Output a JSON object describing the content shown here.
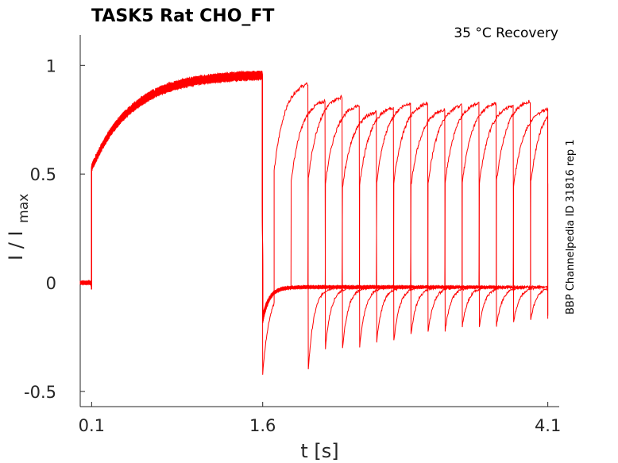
{
  "chart_data": {
    "type": "line",
    "title": "TASK5  Rat  CHO_FT",
    "annotation": "35 °C  Recovery",
    "side_label": "BBP Channelpedia ID 31816 rep 1",
    "xlabel": "t [s]",
    "ylabel": "I / I",
    "ylabel_sub": "max",
    "xlim": [
      0.0,
      4.2
    ],
    "ylim": [
      -0.57,
      1.14
    ],
    "x_ticks": [
      0.1,
      1.6,
      4.1
    ],
    "x_tick_labels": [
      "0.1",
      "1.6",
      "4.1"
    ],
    "y_ticks": [
      -0.5,
      0,
      0.5,
      1
    ],
    "y_tick_labels": [
      "-0.5",
      "0",
      "0.5",
      "1"
    ],
    "grid": false,
    "line_color": "#ff0000",
    "protocol": {
      "prepulse_start": 0.1,
      "prepulse_end": 1.6,
      "prepulse_peak": 0.98,
      "rise_tau": 0.35,
      "instant_fraction": 0.55,
      "initial_level": 0.0,
      "gap_start_undershoot": -0.42,
      "baseline_after": -0.02,
      "recovery_intervals": [
        0.1,
        0.25,
        0.4,
        0.55,
        0.7,
        0.85,
        1.0,
        1.15,
        1.3,
        1.45,
        1.6,
        1.75,
        1.9,
        2.05,
        2.2,
        2.35,
        2.5
      ],
      "test_pulse_duration": 0.3,
      "test_peaks": [
        0.93,
        0.85,
        0.87,
        0.83,
        0.8,
        0.82,
        0.84,
        0.84,
        0.81,
        0.83,
        0.84,
        0.84,
        0.83,
        0.85,
        0.81,
        0.84,
        0.82
      ],
      "tail_minima": [
        -0.4,
        -0.3,
        -0.3,
        -0.3,
        -0.27,
        -0.27,
        -0.24,
        -0.23,
        -0.22,
        -0.2,
        -0.2,
        -0.2,
        -0.18,
        -0.17,
        -0.17,
        -0.15,
        -0.15
      ]
    }
  }
}
